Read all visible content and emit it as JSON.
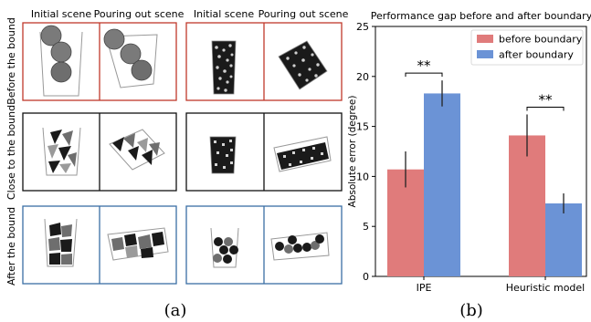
{
  "panel_a": {
    "column_headers": [
      "Initial scene",
      "Pouring out scene",
      "Initial scene",
      "Pouring out scene"
    ],
    "row_labels": [
      "Before the bound",
      "Close to the bound",
      "After the bound"
    ],
    "row_colors": [
      "#c0392b",
      "#111111",
      "#3a6ea5"
    ],
    "caption": "(a)"
  },
  "panel_b": {
    "caption": "(b)"
  },
  "chart_data": {
    "type": "bar",
    "title": "Performance gap before and after boundary",
    "xlabel": "",
    "ylabel": "Absolute error (degree)",
    "ylim": [
      0,
      25
    ],
    "yticks": [
      0,
      5,
      10,
      15,
      20,
      25
    ],
    "categories": [
      "IPE",
      "Heuristic model"
    ],
    "series": [
      {
        "name": "before boundary",
        "color": "#e07b7b",
        "values": [
          10.7,
          14.1
        ],
        "errors": [
          1.8,
          2.1
        ]
      },
      {
        "name": "after boundary",
        "color": "#6b93d6",
        "values": [
          18.3,
          7.3
        ],
        "errors": [
          1.3,
          1.0
        ]
      }
    ],
    "significance": [
      "**",
      "**"
    ],
    "legend_position": "top-right",
    "grid": false
  }
}
